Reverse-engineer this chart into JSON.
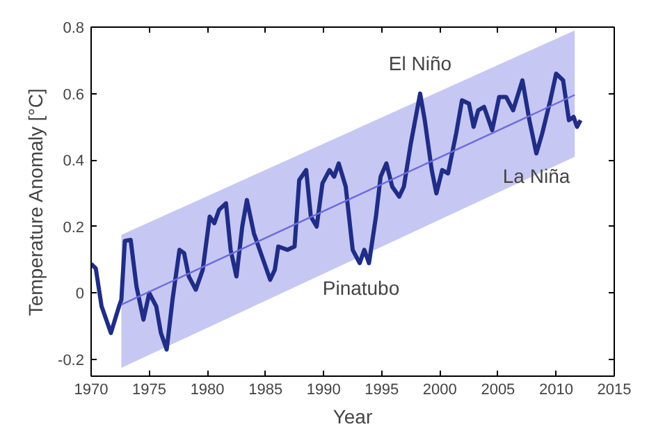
{
  "chart_data": {
    "type": "line",
    "xlabel": "Year",
    "ylabel": "Temperature Anomaly [°C]",
    "xlim": [
      1970,
      2015
    ],
    "xticks": [
      1970,
      1975,
      1980,
      1985,
      1990,
      1995,
      2000,
      2005,
      2010,
      2015
    ],
    "ylim": [
      -0.25,
      0.8
    ],
    "yticks": [
      -0.2,
      0,
      0.2,
      0.4,
      0.6,
      0.8
    ],
    "grid": false,
    "series": [
      {
        "color": "#1f2d86",
        "x": [
          1970.0,
          1970.4,
          1970.9,
          1971.7,
          1972.4,
          1972.6,
          1972.9,
          1973.4,
          1973.9,
          1974.5,
          1975.0,
          1975.6,
          1976.0,
          1976.5,
          1977.0,
          1977.6,
          1978.0,
          1978.4,
          1979.0,
          1979.6,
          1980.2,
          1980.6,
          1981.0,
          1981.6,
          1982.0,
          1982.5,
          1983.0,
          1983.4,
          1984.0,
          1984.8,
          1985.4,
          1985.8,
          1986.1,
          1986.9,
          1987.5,
          1987.9,
          1988.5,
          1988.9,
          1989.4,
          1989.9,
          1990.5,
          1990.9,
          1991.3,
          1991.9,
          1992.5,
          1993.1,
          1993.5,
          1993.9,
          1994.5,
          1994.9,
          1995.4,
          1995.9,
          1996.5,
          1996.9,
          1997.5,
          1998.3,
          1998.7,
          1999.3,
          1999.7,
          2000.2,
          2000.7,
          2001.4,
          2001.9,
          2002.5,
          2002.9,
          2003.3,
          2003.8,
          2004.5,
          2005.1,
          2005.7,
          2006.3,
          2007.1,
          2007.7,
          2008.3,
          2008.8,
          2009.5,
          2010.0,
          2010.6,
          2011.1,
          2011.5,
          2011.8,
          2012.1
        ],
        "values": [
          0.088,
          0.074,
          -0.04,
          -0.12,
          -0.04,
          -0.02,
          0.157,
          0.16,
          0.02,
          -0.08,
          0.0,
          -0.04,
          -0.12,
          -0.17,
          -0.02,
          0.13,
          0.12,
          0.05,
          0.01,
          0.07,
          0.23,
          0.21,
          0.25,
          0.27,
          0.13,
          0.05,
          0.2,
          0.28,
          0.18,
          0.1,
          0.04,
          0.07,
          0.14,
          0.13,
          0.14,
          0.34,
          0.37,
          0.23,
          0.2,
          0.33,
          0.37,
          0.35,
          0.39,
          0.32,
          0.13,
          0.09,
          0.13,
          0.09,
          0.23,
          0.35,
          0.39,
          0.32,
          0.29,
          0.32,
          0.45,
          0.6,
          0.52,
          0.37,
          0.3,
          0.37,
          0.36,
          0.48,
          0.58,
          0.57,
          0.5,
          0.55,
          0.56,
          0.49,
          0.59,
          0.59,
          0.55,
          0.64,
          0.52,
          0.42,
          0.48,
          0.58,
          0.66,
          0.64,
          0.52,
          0.53,
          0.5,
          0.52
        ]
      },
      {
        "color": "#6b6be0",
        "x": [
          1972.6,
          2011.6
        ],
        "values": [
          -0.035,
          0.596
        ],
        "lower": [
          -0.225,
          0.41
        ],
        "upper": [
          0.175,
          0.79
        ]
      }
    ],
    "annotations": [
      {
        "text": "El Niño",
        "x": 1998.3,
        "y": 0.6
      },
      {
        "text": "La Niña",
        "x": 2008.3,
        "y": 0.42
      },
      {
        "text": "Pinatubo",
        "x": 1992.5,
        "y": 0.09
      }
    ]
  }
}
